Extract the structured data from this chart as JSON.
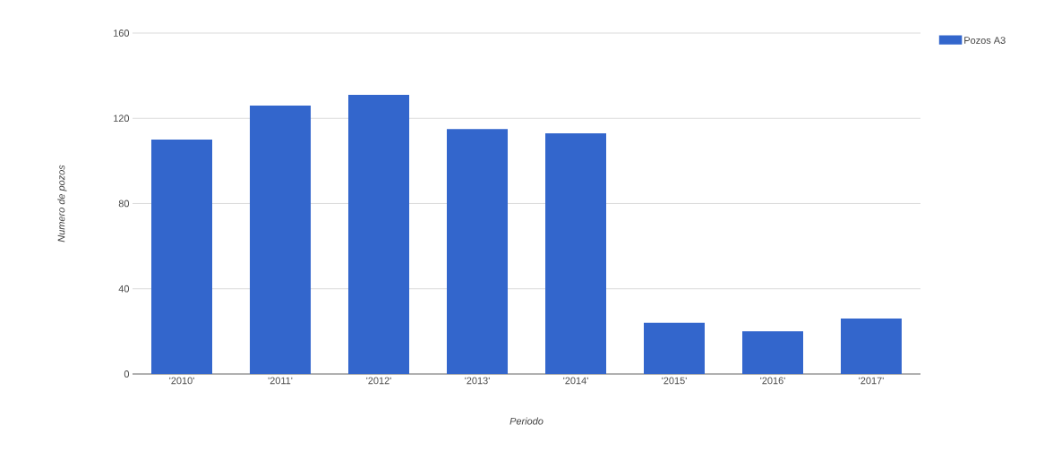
{
  "chart_data": {
    "type": "bar",
    "xlabel": "Periodo",
    "ylabel": "Numero de pozos",
    "categories": [
      "'2010'",
      "'2011'",
      "'2012'",
      "'2013'",
      "'2014'",
      "'2015'",
      "'2016'",
      "'2017'"
    ],
    "series": [
      {
        "name": "Pozos A3",
        "color": "#3366cc",
        "values": [
          110,
          126,
          131,
          115,
          113,
          24,
          20,
          26
        ]
      }
    ],
    "ylim": [
      0,
      160
    ],
    "yticks": [
      0,
      40,
      80,
      120,
      160
    ],
    "grid": "y",
    "legend": "top right"
  }
}
